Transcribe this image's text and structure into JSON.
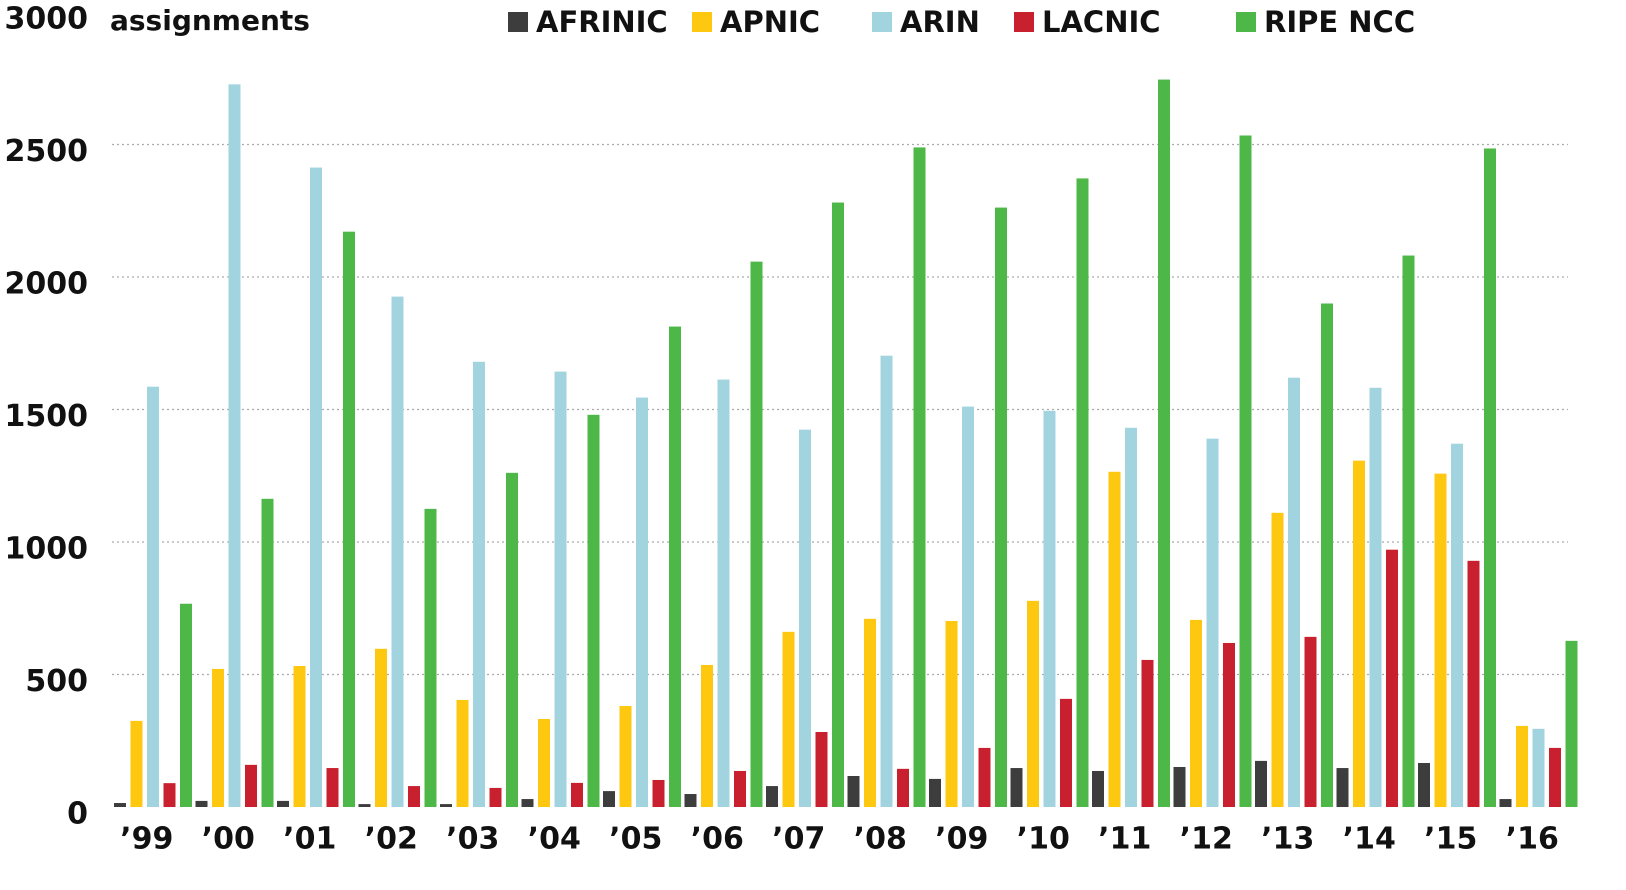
{
  "chart_data": {
    "type": "bar",
    "y_axis_label": "assignments",
    "categories": [
      "’99",
      "’00",
      "’01",
      "’02",
      "’03",
      "’04",
      "’05",
      "’06",
      "’07",
      "’08",
      "’09",
      "’10",
      "’11",
      "’12",
      "’13",
      "’14",
      "’15",
      "’16"
    ],
    "series": [
      {
        "name": "AFRINIC",
        "color": "#3d3d3d",
        "values": [
          15,
          23,
          23,
          11,
          11,
          30,
          60,
          49,
          79,
          117,
          106,
          147,
          136,
          151,
          174,
          147,
          166,
          30
        ]
      },
      {
        "name": "APNIC",
        "color": "#fdc80f",
        "values": [
          325,
          521,
          532,
          597,
          404,
          332,
          381,
          536,
          661,
          710,
          702,
          778,
          1265,
          706,
          1110,
          1307,
          1258,
          306
        ]
      },
      {
        "name": "ARIN",
        "color": "#a2d4e0",
        "values": [
          1586,
          2727,
          2413,
          1926,
          1680,
          1643,
          1545,
          1613,
          1424,
          1703,
          1511,
          1495,
          1431,
          1390,
          1620,
          1582,
          1371,
          295
        ]
      },
      {
        "name": "LACNIC",
        "color": "#c8202f",
        "values": [
          90,
          159,
          147,
          79,
          72,
          91,
          102,
          136,
          283,
          144,
          223,
          408,
          555,
          619,
          642,
          971,
          929,
          223
        ]
      },
      {
        "name": "RIPE NCC",
        "color": "#4db848",
        "values": [
          767,
          1163,
          2171,
          1125,
          1261,
          1480,
          1813,
          2058,
          2281,
          2489,
          2262,
          2372,
          2745,
          2534,
          1900,
          2081,
          2485,
          627
        ]
      }
    ],
    "ylim": [
      0,
      3000
    ],
    "yticks": [
      0,
      500,
      1000,
      1500,
      2000,
      2500,
      3000
    ],
    "grid": true,
    "legend": "top"
  }
}
